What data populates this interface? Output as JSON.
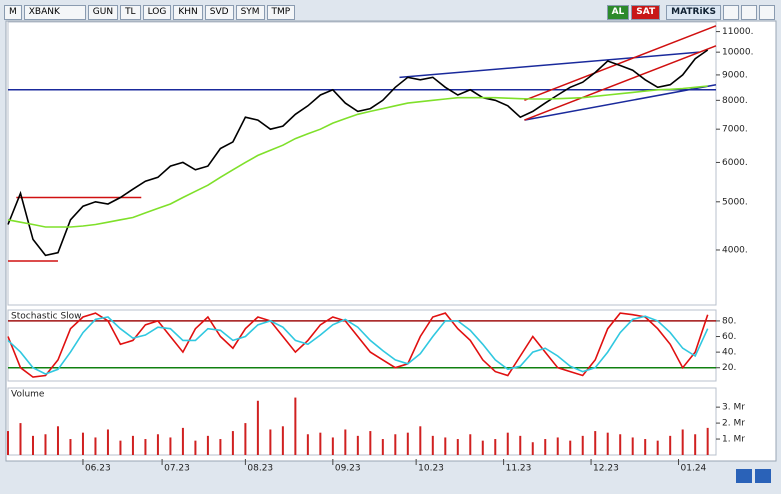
{
  "toolbar": {
    "menu": "M",
    "symbol": "XBANK",
    "buttons": [
      "GUN",
      "TL",
      "LOG",
      "KHN",
      "SVD",
      "SYM",
      "TMP"
    ],
    "buy": "AL",
    "sell": "SAT",
    "brand": "MATRiKS"
  },
  "chart_data": [
    {
      "type": "line",
      "log_scale": true,
      "x": [
        0,
        3,
        6,
        9,
        12,
        15,
        18,
        21,
        24,
        27,
        30,
        33,
        36,
        39,
        42,
        45,
        48,
        51,
        54,
        57,
        60,
        63,
        66,
        69,
        72,
        75,
        78,
        81,
        84,
        87,
        90,
        93,
        96,
        99,
        102,
        105,
        108,
        111,
        114,
        117,
        120,
        123,
        126,
        129,
        132,
        135,
        138,
        141,
        144,
        147,
        150,
        153,
        156,
        159,
        162,
        165,
        168
      ],
      "series": [
        {
          "color": "#000000",
          "values": [
            4500,
            5200,
            4200,
            3900,
            3950,
            4600,
            4900,
            5000,
            4950,
            5100,
            5300,
            5500,
            5600,
            5900,
            6000,
            5800,
            5900,
            6400,
            6600,
            7400,
            7300,
            7000,
            7100,
            7500,
            7800,
            8200,
            8400,
            7900,
            7600,
            7700,
            8000,
            8500,
            8900,
            8800,
            8900,
            8500,
            8200,
            8400,
            8100,
            8000,
            7800,
            7400,
            7600,
            7900,
            8200,
            8500,
            8700,
            9100,
            9600,
            9400,
            9200,
            8800,
            8500,
            8600,
            9000,
            9700,
            10100
          ]
        },
        {
          "color": "#7fe02a",
          "values": [
            4600,
            4550,
            4500,
            4450,
            4450,
            4450,
            4470,
            4500,
            4550,
            4600,
            4650,
            4750,
            4850,
            4950,
            5100,
            5250,
            5400,
            5600,
            5800,
            6000,
            6200,
            6350,
            6500,
            6700,
            6850,
            7000,
            7200,
            7350,
            7500,
            7600,
            7700,
            7800,
            7900,
            7950,
            8000,
            8050,
            8100,
            8100,
            8100,
            8100,
            8080,
            8060,
            8050,
            8050,
            8060,
            8080,
            8100,
            8150,
            8200,
            8250,
            8300,
            8350,
            8400,
            8420,
            8450,
            8500,
            8550
          ]
        }
      ],
      "trendlines": [
        {
          "color": "#1a2a9c",
          "x": [
            0,
            170
          ],
          "y": [
            8400,
            8400
          ]
        },
        {
          "color": "#d01010",
          "x": [
            2,
            32
          ],
          "y": [
            5100,
            5100
          ]
        },
        {
          "color": "#d01010",
          "x": [
            0,
            12
          ],
          "y": [
            3800,
            3800
          ]
        },
        {
          "color": "#1a2a9c",
          "x": [
            94,
            166
          ],
          "y": [
            8900,
            10000
          ]
        },
        {
          "color": "#1a2a9c",
          "x": [
            124,
            170
          ],
          "y": [
            7300,
            8600
          ]
        },
        {
          "color": "#d01010",
          "x": [
            124,
            170
          ],
          "y": [
            8000,
            11300
          ]
        },
        {
          "color": "#d01010",
          "x": [
            124,
            170
          ],
          "y": [
            7300,
            10300
          ]
        }
      ],
      "xlim": [
        0,
        170
      ],
      "ylim": [
        3100,
        11500
      ],
      "yticks": [
        {
          "value": 4000,
          "label": "4000."
        },
        {
          "value": 5000,
          "label": "5000."
        },
        {
          "value": 6000,
          "label": "6000."
        },
        {
          "value": 7000,
          "label": "7000."
        },
        {
          "value": 8000,
          "label": "8000."
        },
        {
          "value": 9000,
          "label": "9000."
        },
        {
          "value": 10000,
          "label": "10000."
        },
        {
          "value": 11000,
          "label": "11000."
        }
      ]
    },
    {
      "type": "line",
      "title": "Stochastic Slow",
      "x": [
        0,
        3,
        6,
        9,
        12,
        15,
        18,
        21,
        24,
        27,
        30,
        33,
        36,
        39,
        42,
        45,
        48,
        51,
        54,
        57,
        60,
        63,
        66,
        69,
        72,
        75,
        78,
        81,
        84,
        87,
        90,
        93,
        96,
        99,
        102,
        105,
        108,
        111,
        114,
        117,
        120,
        123,
        126,
        129,
        132,
        135,
        138,
        141,
        144,
        147,
        150,
        153,
        156,
        159,
        162,
        165,
        168
      ],
      "series": [
        {
          "color": "#e01010",
          "values": [
            60,
            20,
            8,
            10,
            30,
            70,
            85,
            90,
            80,
            50,
            55,
            75,
            80,
            60,
            40,
            70,
            85,
            60,
            45,
            70,
            85,
            80,
            60,
            40,
            55,
            75,
            85,
            80,
            60,
            40,
            30,
            20,
            25,
            60,
            85,
            90,
            70,
            55,
            30,
            15,
            10,
            35,
            60,
            40,
            20,
            15,
            10,
            30,
            70,
            90,
            88,
            85,
            70,
            50,
            20,
            40,
            88
          ]
        },
        {
          "color": "#30c8e0",
          "values": [
            55,
            40,
            20,
            12,
            18,
            40,
            65,
            82,
            85,
            70,
            58,
            62,
            72,
            70,
            55,
            55,
            70,
            68,
            55,
            60,
            75,
            80,
            72,
            55,
            50,
            62,
            75,
            82,
            72,
            55,
            42,
            30,
            25,
            38,
            60,
            80,
            80,
            68,
            50,
            30,
            18,
            22,
            40,
            45,
            35,
            22,
            15,
            20,
            40,
            65,
            82,
            86,
            80,
            65,
            45,
            35,
            70
          ]
        }
      ],
      "hlines": [
        {
          "color": "#a01010",
          "y": 80
        },
        {
          "color": "#108010",
          "y": 20
        }
      ],
      "xlim": [
        0,
        170
      ],
      "ylim": [
        3,
        94
      ],
      "yticks": [
        {
          "value": 20,
          "label": "20."
        },
        {
          "value": 40,
          "label": "40."
        },
        {
          "value": 60,
          "label": "60."
        },
        {
          "value": 80,
          "label": "80."
        }
      ]
    },
    {
      "type": "bar",
      "title": "Volume",
      "color": "#d02020",
      "x": [
        0,
        3,
        6,
        9,
        12,
        15,
        18,
        21,
        24,
        27,
        30,
        33,
        36,
        39,
        42,
        45,
        48,
        51,
        54,
        57,
        60,
        63,
        66,
        69,
        72,
        75,
        78,
        81,
        84,
        87,
        90,
        93,
        96,
        99,
        102,
        105,
        108,
        111,
        114,
        117,
        120,
        123,
        126,
        129,
        132,
        135,
        138,
        141,
        144,
        147,
        150,
        153,
        156,
        159,
        162,
        165,
        168
      ],
      "values": [
        1.5,
        2.0,
        1.2,
        1.3,
        1.8,
        1.0,
        1.4,
        1.1,
        1.6,
        0.9,
        1.2,
        1.0,
        1.3,
        1.1,
        1.7,
        0.9,
        1.2,
        1.0,
        1.5,
        2.0,
        3.4,
        1.6,
        1.8,
        3.6,
        1.3,
        1.4,
        1.1,
        1.6,
        1.2,
        1.5,
        1.0,
        1.3,
        1.4,
        1.8,
        1.2,
        1.1,
        1.0,
        1.3,
        0.9,
        1.0,
        1.4,
        1.2,
        0.8,
        1.0,
        1.1,
        0.9,
        1.2,
        1.5,
        1.4,
        1.3,
        1.1,
        1.0,
        0.9,
        1.2,
        1.6,
        1.3,
        1.7
      ],
      "xlim": [
        0,
        170
      ],
      "ylim": [
        0,
        4.2
      ],
      "yticks": [
        {
          "value": 1,
          "label": "1. Mr"
        },
        {
          "value": 2,
          "label": "2. Mr"
        },
        {
          "value": 3,
          "label": "3. Mr"
        }
      ],
      "xticks": [
        {
          "value": 18,
          "label": "06.23"
        },
        {
          "value": 37,
          "label": "07.23"
        },
        {
          "value": 57,
          "label": "08.23"
        },
        {
          "value": 78,
          "label": "09.23"
        },
        {
          "value": 98,
          "label": "10.23"
        },
        {
          "value": 119,
          "label": "11.23"
        },
        {
          "value": 140,
          "label": "12.23"
        },
        {
          "value": 161,
          "label": "01.24"
        }
      ]
    }
  ]
}
